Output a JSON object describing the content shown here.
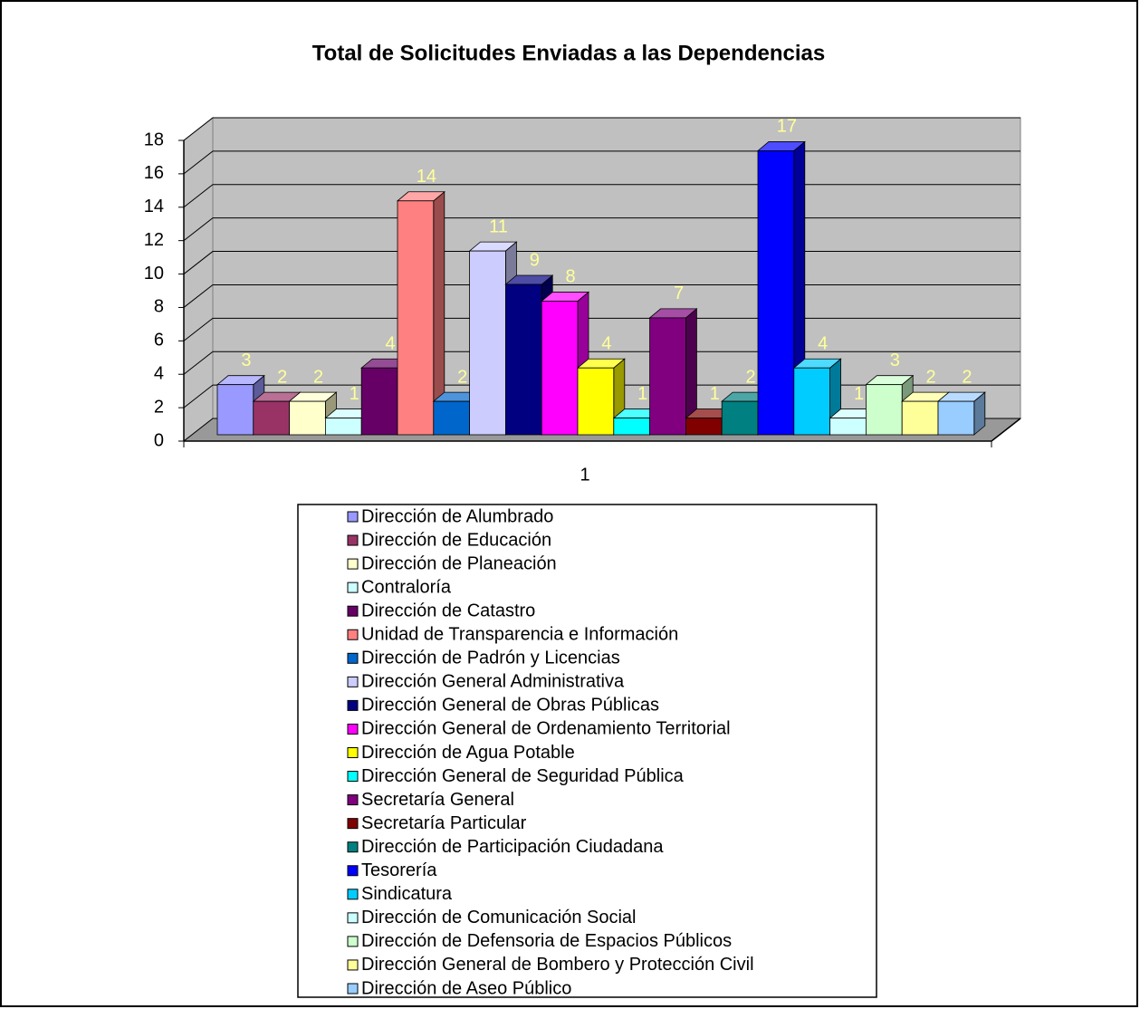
{
  "chart_data": {
    "type": "bar3d",
    "title": "Total de Solicitudes Enviadas a las Dependencias",
    "categories": [
      "1"
    ],
    "ylim": [
      0,
      18
    ],
    "yticks": [
      0,
      2,
      4,
      6,
      8,
      10,
      12,
      14,
      16,
      18
    ],
    "grid": true,
    "label_color": "#ffff99",
    "series": [
      {
        "name": "Dirección de Alumbrado",
        "color": "#9999ff",
        "values": [
          3
        ]
      },
      {
        "name": "Dirección de Educación",
        "color": "#993366",
        "values": [
          2
        ]
      },
      {
        "name": "Dirección de Planeación",
        "color": "#ffffcc",
        "values": [
          2
        ]
      },
      {
        "name": "Contraloría",
        "color": "#ccffff",
        "values": [
          1
        ]
      },
      {
        "name": "Dirección de Catastro",
        "color": "#660066",
        "values": [
          4
        ]
      },
      {
        "name": "Unidad de Transparencia e Información",
        "color": "#ff8080",
        "values": [
          14
        ]
      },
      {
        "name": "Dirección de Padrón y Licencias",
        "color": "#0066cc",
        "values": [
          2
        ]
      },
      {
        "name": "Dirección General Administrativa",
        "color": "#ccccff",
        "values": [
          11
        ]
      },
      {
        "name": "Dirección General de Obras Públicas",
        "color": "#000080",
        "values": [
          9
        ]
      },
      {
        "name": "Dirección General de Ordenamiento Territorial",
        "color": "#ff00ff",
        "values": [
          8
        ]
      },
      {
        "name": "Dirección de Agua Potable",
        "color": "#ffff00",
        "values": [
          4
        ]
      },
      {
        "name": "Dirección General de Seguridad Pública",
        "color": "#00ffff",
        "values": [
          1
        ]
      },
      {
        "name": "Secretaría General",
        "color": "#800080",
        "values": [
          7
        ]
      },
      {
        "name": "Secretaría Particular",
        "color": "#800000",
        "values": [
          1
        ]
      },
      {
        "name": "Dirección de Participación Ciudadana",
        "color": "#008080",
        "values": [
          2
        ]
      },
      {
        "name": "Tesorería",
        "color": "#0000ff",
        "values": [
          17
        ]
      },
      {
        "name": "Sindicatura",
        "color": "#00ccff",
        "values": [
          4
        ]
      },
      {
        "name": "Dirección de Comunicación Social",
        "color": "#ccffff",
        "values": [
          1
        ]
      },
      {
        "name": "Dirección de Defensoria de Espacios Públicos",
        "color": "#ccffcc",
        "values": [
          3
        ]
      },
      {
        "name": "Dirección General de Bombero y Protección Civil",
        "color": "#ffff99",
        "values": [
          2
        ]
      },
      {
        "name": "Dirección de Aseo Público",
        "color": "#99ccff",
        "values": [
          2
        ]
      }
    ]
  }
}
